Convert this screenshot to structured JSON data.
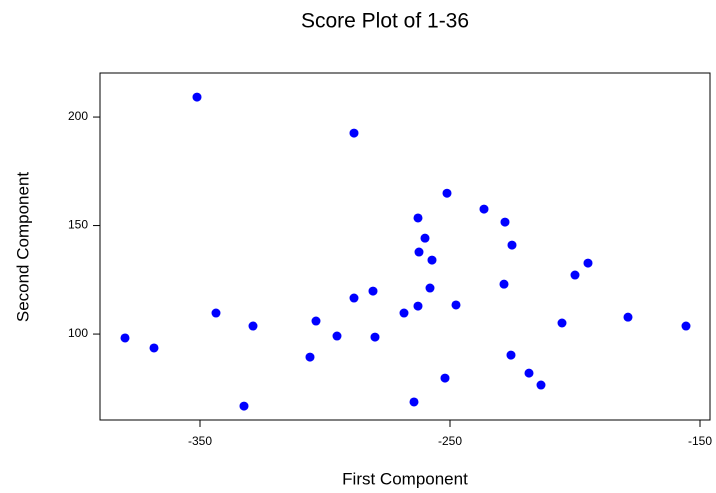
{
  "chart_data": {
    "type": "scatter",
    "title": "Score Plot of 1-36",
    "x_label": "First Component",
    "y_label": "Second Component",
    "color": "#0000ff",
    "x": [
      -351.2,
      -288.4,
      -251.2,
      -236.4,
      -228.0,
      -262.8,
      -260.0,
      -225.2,
      -262.4,
      -257.2,
      -194.8,
      -200.0,
      -228.4,
      -258.0,
      -280.8,
      -288.4,
      -262.8,
      -247.6,
      -343.6,
      -268.4,
      -178.8,
      -303.6,
      -205.2,
      -328.8,
      -155.6,
      -295.2,
      -380.0,
      -280.0,
      -368.4,
      -306.0,
      -225.6,
      -218.4,
      -252.0,
      -213.6,
      -264.4,
      -332.4
    ],
    "values": [
      209.2,
      192.6,
      164.9,
      157.6,
      151.6,
      153.5,
      144.2,
      141.0,
      137.8,
      134.1,
      132.7,
      127.2,
      123.0,
      121.2,
      119.8,
      116.6,
      112.9,
      113.4,
      109.7,
      109.7,
      107.8,
      106.0,
      105.1,
      103.7,
      103.7,
      99.1,
      98.2,
      98.6,
      93.6,
      89.4,
      90.3,
      82.0,
      79.7,
      76.5,
      68.7,
      66.8
    ],
    "xlim": [
      -390,
      -146
    ],
    "ylim": [
      60.4,
      220.3
    ],
    "xticks": [
      -350,
      -250,
      -150
    ],
    "yticks": [
      100,
      150,
      200
    ]
  }
}
